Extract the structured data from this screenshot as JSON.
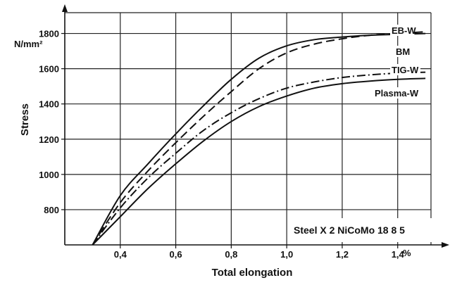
{
  "chart_data": {
    "type": "line",
    "xlabel": "Total elongation",
    "ylabel": "Stress",
    "xunit": "%",
    "yunit": "N/mm²",
    "xlim": [
      0.2,
      1.52
    ],
    "ylim": [
      600,
      1950
    ],
    "xticks": [
      0.4,
      0.6,
      0.8,
      1.0,
      1.2,
      1.4
    ],
    "xtick_labels": [
      "0,4",
      "0,6",
      "0,8",
      "1,0",
      "1,2",
      "1,4"
    ],
    "yticks": [
      800,
      1000,
      1200,
      1400,
      1600,
      1800
    ],
    "ytick_labels": [
      "800",
      "1000",
      "1200",
      "1400",
      "1600",
      "1800"
    ],
    "grid": true,
    "annotation": "Steel X 2 NiCoMo 18 8 5",
    "series": [
      {
        "name": "EB-W",
        "style": "solid",
        "x": [
          0.3,
          0.4,
          0.5,
          0.6,
          0.7,
          0.8,
          0.9,
          1.0,
          1.1,
          1.2,
          1.3,
          1.4,
          1.5
        ],
        "y": [
          600,
          880,
          1060,
          1230,
          1390,
          1540,
          1660,
          1730,
          1765,
          1780,
          1790,
          1795,
          1800
        ]
      },
      {
        "name": "BM",
        "style": "dashed",
        "x": [
          0.3,
          0.4,
          0.5,
          0.6,
          0.7,
          0.8,
          0.9,
          1.0,
          1.1,
          1.2,
          1.3,
          1.4,
          1.5
        ],
        "y": [
          600,
          840,
          1020,
          1180,
          1330,
          1470,
          1600,
          1690,
          1740,
          1770,
          1790,
          1800,
          1810
        ]
      },
      {
        "name": "TIG-W",
        "style": "dashdot",
        "x": [
          0.3,
          0.4,
          0.5,
          0.6,
          0.7,
          0.8,
          0.9,
          1.0,
          1.1,
          1.2,
          1.3,
          1.4,
          1.5
        ],
        "y": [
          600,
          810,
          980,
          1120,
          1250,
          1350,
          1430,
          1490,
          1525,
          1550,
          1565,
          1575,
          1580
        ]
      },
      {
        "name": "Plasma-W",
        "style": "solid",
        "x": [
          0.3,
          0.4,
          0.5,
          0.6,
          0.7,
          0.8,
          0.9,
          1.0,
          1.1,
          1.2,
          1.3,
          1.4,
          1.5
        ],
        "y": [
          600,
          760,
          920,
          1060,
          1190,
          1300,
          1385,
          1445,
          1490,
          1515,
          1530,
          1540,
          1545
        ]
      }
    ]
  }
}
